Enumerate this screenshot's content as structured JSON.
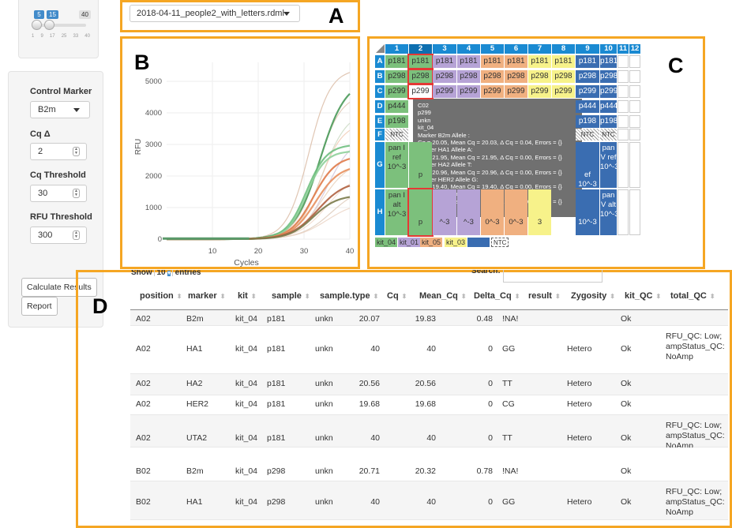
{
  "sidebar": {
    "slider": {
      "low": "5",
      "high": "15",
      "max": "40",
      "ticks": [
        "1",
        "9",
        "17",
        "25",
        "33",
        "40"
      ]
    },
    "control_marker": {
      "label": "Control Marker",
      "value": "B2m"
    },
    "cq_delta": {
      "label": "Cq Δ",
      "value": "2"
    },
    "cq_threshold": {
      "label": "Cq Threshold",
      "value": "30"
    },
    "rfu_threshold": {
      "label": "RFU Threshold",
      "value": "300"
    },
    "calculate_label": "Calculate Results",
    "report_label": "Report"
  },
  "file_select": {
    "value": "2018-04-11_people2_with_letters.rdml"
  },
  "panel_letters": {
    "a": "A",
    "b": "B",
    "c": "C",
    "d": "D"
  },
  "colors": {
    "orange": "#f5a623",
    "blue": "#1a8ad2",
    "kit04": "#7cc07c",
    "kit01": "#b6a3d6",
    "kit05": "#f0b080",
    "kit03": "#f7f28a",
    "kit02": "#3a6db1"
  },
  "chart_data": {
    "type": "line",
    "title": "",
    "xlabel": "Cycles",
    "ylabel": "RFU",
    "xlim": [
      0,
      40
    ],
    "ylim": [
      0,
      5600
    ],
    "xticks": [
      "10",
      "20",
      "30",
      "40"
    ],
    "yticks": [
      "0",
      "1000",
      "2000",
      "3000",
      "4000",
      "5000"
    ],
    "series": [
      {
        "name": "green-1",
        "color": "#4a9a5a",
        "plateau": 5050,
        "mid": 33.5,
        "k": 0.36
      },
      {
        "name": "green-2",
        "color": "#6fbf7f",
        "plateau": 3000,
        "mid": 30.5,
        "k": 0.45
      },
      {
        "name": "green-3",
        "color": "#8fd09a",
        "plateau": 2800,
        "mid": 30.5,
        "k": 0.48
      },
      {
        "name": "orange-1",
        "color": "#e07b4a",
        "plateau": 2650,
        "mid": 32,
        "k": 0.4
      },
      {
        "name": "orange-2",
        "color": "#e8905e",
        "plateau": 2350,
        "mid": 32.5,
        "k": 0.38
      },
      {
        "name": "brown-1",
        "color": "#b06040",
        "plateau": 1850,
        "mid": 33,
        "k": 0.34
      },
      {
        "name": "olive-1",
        "color": "#7a7a4a",
        "plateau": 1400,
        "mid": 32,
        "k": 0.38
      },
      {
        "name": "faint-1",
        "color": "#d8b8a0",
        "plateau": 5400,
        "mid": 31,
        "k": 0.42
      },
      {
        "name": "faint-2",
        "color": "#e0c4b0",
        "plateau": 4600,
        "mid": 33,
        "k": 0.4
      },
      {
        "name": "faint-3",
        "color": "#c8d8c0",
        "plateau": 4100,
        "mid": 34,
        "k": 0.36
      },
      {
        "name": "faint-4",
        "color": "#f0c8b0",
        "plateau": 3700,
        "mid": 33.5,
        "k": 0.4
      },
      {
        "name": "faint-5",
        "color": "#d0c0d8",
        "plateau": 3300,
        "mid": 35,
        "k": 0.35
      },
      {
        "name": "faint-6",
        "color": "#e8d0b8",
        "plateau": 2500,
        "mid": 34,
        "k": 0.34
      },
      {
        "name": "faint-7",
        "color": "#f0d8c8",
        "plateau": 2100,
        "mid": 35,
        "k": 0.32
      },
      {
        "name": "faint-8",
        "color": "#dcc8b8",
        "plateau": 1700,
        "mid": 36,
        "k": 0.3
      },
      {
        "name": "faint-9",
        "color": "#ead2c2",
        "plateau": 1200,
        "mid": 35,
        "k": 0.3
      }
    ]
  },
  "plate": {
    "columns": [
      "1",
      "2",
      "3",
      "4",
      "5",
      "6",
      "7",
      "8",
      "9",
      "10",
      "11",
      "12"
    ],
    "rows": [
      "A",
      "B",
      "C",
      "D",
      "E",
      "F",
      "G",
      "H"
    ],
    "row_a": [
      "p181",
      "p181",
      "p181",
      "p181",
      "p181",
      "p181",
      "p181",
      "p181",
      "p181",
      "p181"
    ],
    "row_b": [
      "p298",
      "p298",
      "p298",
      "p298",
      "p298",
      "p298",
      "p298",
      "p298",
      "p298",
      "p298"
    ],
    "row_c": [
      "p299",
      "p299",
      "p299",
      "p299",
      "p299",
      "p299",
      "p299",
      "p299",
      "p299",
      "p299"
    ],
    "row_d": [
      "p444",
      "p444",
      "p444",
      "p444"
    ],
    "row_e": [
      "p198",
      "p198",
      "p198",
      "p198"
    ],
    "row_f": [
      "NTC",
      "NTC",
      "NTC",
      "NTC"
    ],
    "g_col1": "pan I ref 10^-3",
    "g_col2": "p",
    "g_col9": "pan V ref 10^-3",
    "g_col8": "ef 10^-3",
    "h_col1": "pan I alt 10^-3",
    "h_col2": "p",
    "h_col9": "pan V alt 10^-3",
    "h_col8": "10^-3",
    "h_col3": "^-3",
    "h_col4": "^-3",
    "h_col5": "0^-3",
    "h_col6": "0^-3",
    "h_col7": "3",
    "kit_legend": [
      "kit_04",
      "kit_01",
      "kit_05",
      "kit_03",
      "kit_02",
      "NTC"
    ]
  },
  "tooltip": [
    "C02",
    "p299",
    "unkn",
    "kit_04",
    "Marker B2m Allele :",
    "Cq = 20.05, Mean Cq = 20.03, Δ Cq = 0.04, Errors = {}",
    "Marker HA1 Allele A:",
    "Cq = 21.95, Mean Cq = 21.95, Δ Cq = 0.00, Errors = {}",
    "Marker HA2 Allele T:",
    "Cq = 20.96, Mean Cq = 20.96, Δ Cq = 0.00, Errors = {}",
    "Marker HER2 Allele G:",
    "Cq = 19.40, Mean Cq = 19.40, Δ Cq = 0.00, Errors = {}",
    "Marker UTA2 Allele C:",
    "Cq = 19.74, Mean Cq = 19.74, Δ Cq = 0.00, Errors = {}"
  ],
  "table": {
    "show_label": "Show",
    "show_value": "10",
    "entries_label": "entries",
    "search_label": "Search:",
    "headers": [
      "position",
      "marker",
      "kit",
      "sample",
      "sample.type",
      "Cq",
      "Mean_Cq",
      "Delta_Cq",
      "result",
      "Zygosity",
      "kit_QC",
      "total_QC"
    ],
    "rows": [
      {
        "position": "A02",
        "marker": "B2m",
        "kit": "kit_04",
        "sample": "p181",
        "sample_type": "unkn",
        "cq": "20.07",
        "mean_cq": "19.83",
        "delta_cq": "0.48",
        "result": "!NA!",
        "zygosity": "",
        "kit_qc": "Ok",
        "total_qc": ""
      },
      {
        "position": "A02",
        "marker": "HA1",
        "kit": "kit_04",
        "sample": "p181",
        "sample_type": "unkn",
        "cq": "40",
        "mean_cq": "40",
        "delta_cq": "0",
        "result": "GG",
        "zygosity": "Hetero",
        "kit_qc": "Ok",
        "total_qc": "RFU_QC: Low; ampStatus_QC: NoAmp"
      },
      {
        "position": "A02",
        "marker": "HA2",
        "kit": "kit_04",
        "sample": "p181",
        "sample_type": "unkn",
        "cq": "20.56",
        "mean_cq": "20.56",
        "delta_cq": "0",
        "result": "TT",
        "zygosity": "Hetero",
        "kit_qc": "Ok",
        "total_qc": ""
      },
      {
        "position": "A02",
        "marker": "HER2",
        "kit": "kit_04",
        "sample": "p181",
        "sample_type": "unkn",
        "cq": "19.68",
        "mean_cq": "19.68",
        "delta_cq": "0",
        "result": "CG",
        "zygosity": "Hetero",
        "kit_qc": "Ok",
        "total_qc": ""
      },
      {
        "position": "A02",
        "marker": "UTA2",
        "kit": "kit_04",
        "sample": "p181",
        "sample_type": "unkn",
        "cq": "40",
        "mean_cq": "40",
        "delta_cq": "0",
        "result": "TT",
        "zygosity": "Hetero",
        "kit_qc": "Ok",
        "total_qc": "RFU_QC: Low; ampStatus_QC: NoAmp"
      },
      {
        "position": "B02",
        "marker": "B2m",
        "kit": "kit_04",
        "sample": "p298",
        "sample_type": "unkn",
        "cq": "20.71",
        "mean_cq": "20.32",
        "delta_cq": "0.78",
        "result": "!NA!",
        "zygosity": "",
        "kit_qc": "Ok",
        "total_qc": ""
      },
      {
        "position": "B02",
        "marker": "HA1",
        "kit": "kit_04",
        "sample": "p298",
        "sample_type": "unkn",
        "cq": "40",
        "mean_cq": "40",
        "delta_cq": "0",
        "result": "GG",
        "zygosity": "Hetero",
        "kit_qc": "Ok",
        "total_qc": "RFU_QC: Low; ampStatus_QC: NoAmp"
      }
    ]
  }
}
